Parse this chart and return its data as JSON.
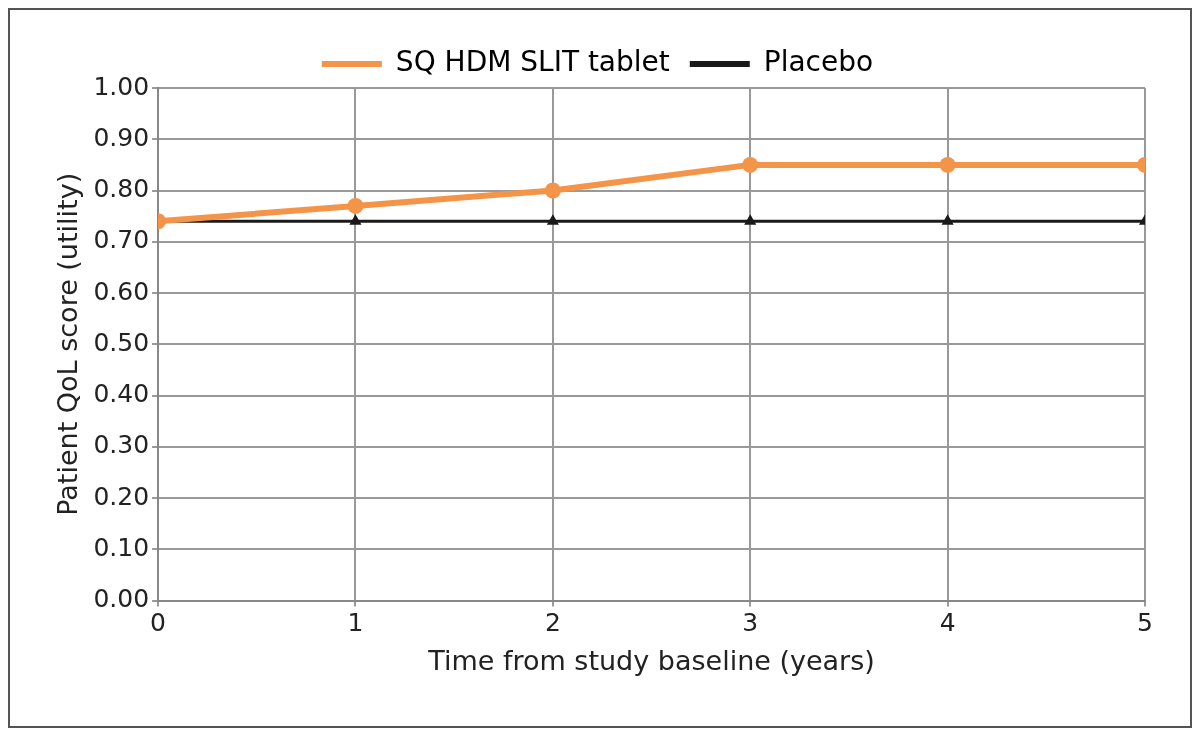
{
  "chart_data": {
    "type": "line",
    "xlabel": "Time from study baseline (years)",
    "ylabel": "Patient QoL score (utility)",
    "x": [
      0,
      1,
      2,
      3,
      4,
      5
    ],
    "series": [
      {
        "name": "SQ HDM SLIT tablet",
        "color": "#f39448",
        "marker": "circle",
        "values": [
          0.74,
          0.77,
          0.8,
          0.85,
          0.85,
          0.85
        ]
      },
      {
        "name": "Placebo",
        "color": "#1a1a1a",
        "marker": "triangle",
        "values": [
          0.74,
          0.74,
          0.74,
          0.74,
          0.74,
          0.74
        ]
      }
    ],
    "xlim": [
      0,
      5
    ],
    "xticks": [
      0,
      1,
      2,
      3,
      4,
      5
    ],
    "ylim": [
      0,
      1
    ],
    "yticks": [
      {
        "value": 0,
        "label": "0.00"
      },
      {
        "value": 0.1,
        "label": "0.10"
      },
      {
        "value": 0.2,
        "label": "0.20"
      },
      {
        "value": 0.3,
        "label": "0.30"
      },
      {
        "value": 0.4,
        "label": "0.40"
      },
      {
        "value": 0.5,
        "label": "0.50"
      },
      {
        "value": 0.6,
        "label": "0.60"
      },
      {
        "value": 0.7,
        "label": "0.70"
      },
      {
        "value": 0.8,
        "label": "0.80"
      },
      {
        "value": 0.9,
        "label": "0.90"
      },
      {
        "value": 1,
        "label": "1.00"
      }
    ],
    "grid": true,
    "legend": "top",
    "line_style": "solid"
  }
}
